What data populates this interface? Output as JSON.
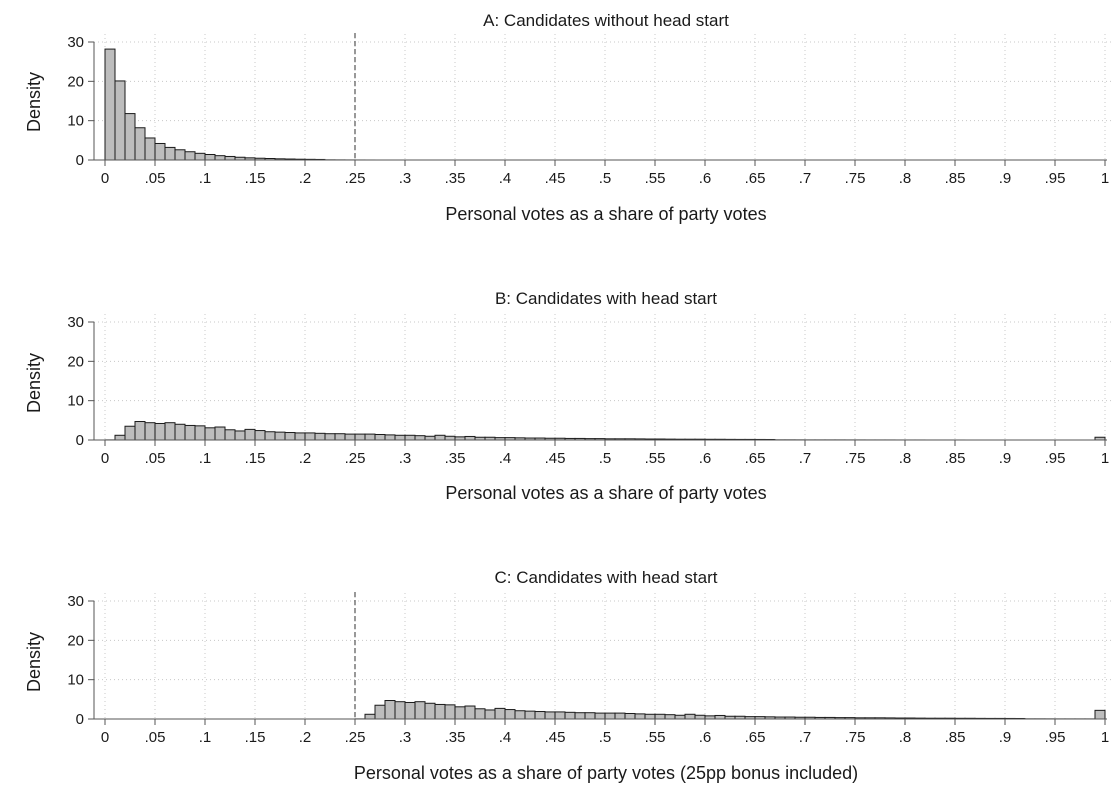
{
  "chart_data": [
    {
      "type": "bar",
      "title": "A: Candidates without head start",
      "xlabel": "Personal votes as a share of party votes",
      "ylabel": "Density",
      "xlim": [
        0,
        1
      ],
      "ylim": [
        0,
        30
      ],
      "xticks": [
        "0",
        ".05",
        ".1",
        ".15",
        ".2",
        ".25",
        ".3",
        ".35",
        ".4",
        ".45",
        ".5",
        ".55",
        ".6",
        ".65",
        ".7",
        ".75",
        ".8",
        ".85",
        ".9",
        ".95",
        "1"
      ],
      "yticks": [
        "0",
        "10",
        "20",
        "30"
      ],
      "grid": true,
      "reference_line": 0.25,
      "bin_width": 0.01,
      "densities": [
        28.2,
        20.1,
        11.8,
        8.2,
        5.6,
        4.2,
        3.2,
        2.6,
        2.1,
        1.7,
        1.4,
        1.1,
        0.9,
        0.7,
        0.55,
        0.45,
        0.38,
        0.3,
        0.25,
        0.2,
        0.17,
        0.14,
        0.12,
        0.1,
        0.08,
        0.07,
        0.06,
        0.05,
        0.05,
        0.04,
        0.04,
        0.03,
        0.03,
        0.03,
        0.03,
        0.02,
        0.02,
        0.02,
        0.02,
        0.02,
        0.02,
        0.02,
        0.02,
        0.02,
        0.02,
        0.02,
        0.02,
        0.02,
        0.02,
        0.02,
        0.02,
        0.02,
        0.02,
        0.02,
        0.02,
        0.02,
        0.02,
        0.02,
        0.02,
        0.02,
        0.02,
        0.02,
        0.02,
        0.02,
        0.02,
        0.02,
        0.02,
        0.02,
        0.02,
        0.02,
        0.02,
        0.02,
        0.02,
        0,
        0,
        0.02,
        0.02,
        0.02,
        0.02,
        0.02,
        0.02,
        0.02,
        0.02,
        0.02,
        0.02,
        0.02,
        0,
        0,
        0.02,
        0.02,
        0.02,
        0.02,
        0.02,
        0.02,
        0,
        0,
        0.02,
        0.02,
        0.02,
        0.02
      ]
    },
    {
      "type": "bar",
      "title": "B: Candidates with head start",
      "xlabel": "Personal votes as a share of party votes",
      "ylabel": "Density",
      "xlim": [
        0,
        1
      ],
      "ylim": [
        0,
        30
      ],
      "xticks": [
        "0",
        ".05",
        ".1",
        ".15",
        ".2",
        ".25",
        ".3",
        ".35",
        ".4",
        ".45",
        ".5",
        ".55",
        ".6",
        ".65",
        ".7",
        ".75",
        ".8",
        ".85",
        ".9",
        ".95",
        "1"
      ],
      "yticks": [
        "0",
        "10",
        "20",
        "30"
      ],
      "grid": true,
      "reference_line": null,
      "bin_width": 0.01,
      "densities": [
        0.1,
        1.2,
        3.5,
        4.7,
        4.4,
        4.2,
        4.4,
        4.0,
        3.7,
        3.6,
        3.1,
        3.3,
        2.6,
        2.3,
        2.7,
        2.4,
        2.1,
        2.0,
        1.9,
        1.8,
        1.8,
        1.7,
        1.6,
        1.6,
        1.5,
        1.5,
        1.5,
        1.4,
        1.3,
        1.2,
        1.2,
        1.1,
        0.95,
        1.2,
        0.95,
        0.8,
        0.9,
        0.7,
        0.7,
        0.6,
        0.6,
        0.55,
        0.5,
        0.5,
        0.45,
        0.45,
        0.4,
        0.4,
        0.35,
        0.35,
        0.3,
        0.3,
        0.3,
        0.28,
        0.25,
        0.25,
        0.22,
        0.2,
        0.2,
        0.2,
        0.18,
        0.18,
        0.16,
        0.15,
        0.15,
        0.14,
        0.13,
        0.12,
        0.12,
        0.11,
        0.1,
        0.1,
        0.1,
        0.1,
        0.09,
        0.09,
        0.08,
        0.08,
        0.08,
        0.07,
        0.07,
        0.07,
        0.06,
        0.06,
        0.06,
        0.06,
        0.05,
        0.05,
        0.05,
        0.05,
        0.05,
        0.04,
        0.04,
        0.04,
        0.04,
        0.04,
        0.03,
        0.03,
        0.03,
        0.7
      ]
    },
    {
      "type": "bar",
      "title": "C: Candidates with head start",
      "xlabel": "Personal votes as a share of party votes (25pp bonus included)",
      "ylabel": "Density",
      "xlim": [
        0,
        1
      ],
      "ylim": [
        0,
        30
      ],
      "xticks": [
        "0",
        ".05",
        ".1",
        ".15",
        ".2",
        ".25",
        ".3",
        ".35",
        ".4",
        ".45",
        ".5",
        ".55",
        ".6",
        ".65",
        ".7",
        ".75",
        ".8",
        ".85",
        ".9",
        ".95",
        "1"
      ],
      "yticks": [
        "0",
        "10",
        "20",
        "30"
      ],
      "grid": true,
      "reference_line": 0.25,
      "bin_width": 0.01,
      "densities": [
        0,
        0,
        0,
        0,
        0,
        0,
        0,
        0,
        0,
        0,
        0,
        0,
        0,
        0,
        0,
        0,
        0,
        0,
        0,
        0,
        0,
        0,
        0,
        0,
        0,
        0.1,
        1.2,
        3.5,
        4.7,
        4.4,
        4.2,
        4.4,
        4.0,
        3.7,
        3.6,
        3.1,
        3.3,
        2.6,
        2.3,
        2.7,
        2.4,
        2.1,
        2.0,
        1.9,
        1.8,
        1.8,
        1.7,
        1.6,
        1.6,
        1.5,
        1.5,
        1.5,
        1.4,
        1.3,
        1.2,
        1.2,
        1.1,
        0.95,
        1.2,
        0.95,
        0.8,
        0.9,
        0.7,
        0.7,
        0.6,
        0.6,
        0.55,
        0.5,
        0.5,
        0.45,
        0.45,
        0.4,
        0.4,
        0.35,
        0.35,
        0.3,
        0.3,
        0.3,
        0.28,
        0.25,
        0.25,
        0.22,
        0.2,
        0.2,
        0.2,
        0.18,
        0.18,
        0.16,
        0.15,
        0.15,
        0.14,
        0.13,
        0.12,
        0.12,
        0.11,
        0.1,
        0.1,
        0.1,
        0.1,
        2.2
      ]
    }
  ]
}
